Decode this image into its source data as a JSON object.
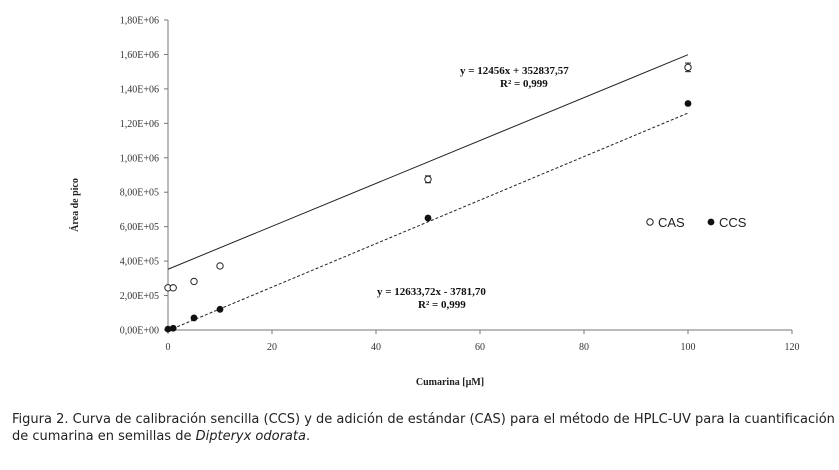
{
  "chart_data": {
    "type": "scatter",
    "xlabel": "Cumarina [µM]",
    "ylabel": "Área de pico",
    "xlim": [
      0,
      120
    ],
    "ylim": [
      0,
      1800000
    ],
    "xticks": [
      "0",
      "20",
      "40",
      "60",
      "80",
      "100",
      "120"
    ],
    "yticks": [
      "0,00E+00",
      "2,00E+05",
      "4,00E+05",
      "6,00E+05",
      "8,00E+05",
      "1,00E+06",
      "1,20E+06",
      "1,40E+06",
      "1,60E+06",
      "1,80E+06"
    ],
    "grid": false,
    "legend_position": "right",
    "series": [
      {
        "name": "CAS",
        "marker": "open-circle",
        "x": [
          0,
          1,
          5,
          10,
          50,
          100
        ],
        "y": [
          245000,
          245000,
          282000,
          372000,
          875000,
          1525000
        ],
        "error": [
          0,
          0,
          0,
          0,
          20000,
          25000
        ],
        "fit": {
          "slope": 12456,
          "intercept": 352837.57,
          "x_range": [
            0,
            100
          ],
          "style": "solid"
        },
        "equation": "y = 12456x + 352837,57",
        "r2": "R² = 0,999"
      },
      {
        "name": "CCS",
        "marker": "filled-circle",
        "x": [
          0,
          1,
          5,
          10,
          50,
          100
        ],
        "y": [
          5000,
          10000,
          70000,
          120000,
          650000,
          1315000
        ],
        "error": [
          0,
          0,
          0,
          0,
          0,
          0
        ],
        "fit": {
          "slope": 12633.72,
          "intercept": -3781.7,
          "x_range": [
            0,
            100
          ],
          "style": "dashed"
        },
        "equation": "y = 12633,72x - 3781,70",
        "r2": "R² = 0,999"
      }
    ]
  },
  "caption": {
    "text": "Figura 2. Curva de calibración sencilla (CCS) y de adición de estándar (CAS) para el método de HPLC-UV para la cuantificación de cumarina en semillas de ",
    "italic": "Dipteryx odorata",
    "end": "."
  }
}
